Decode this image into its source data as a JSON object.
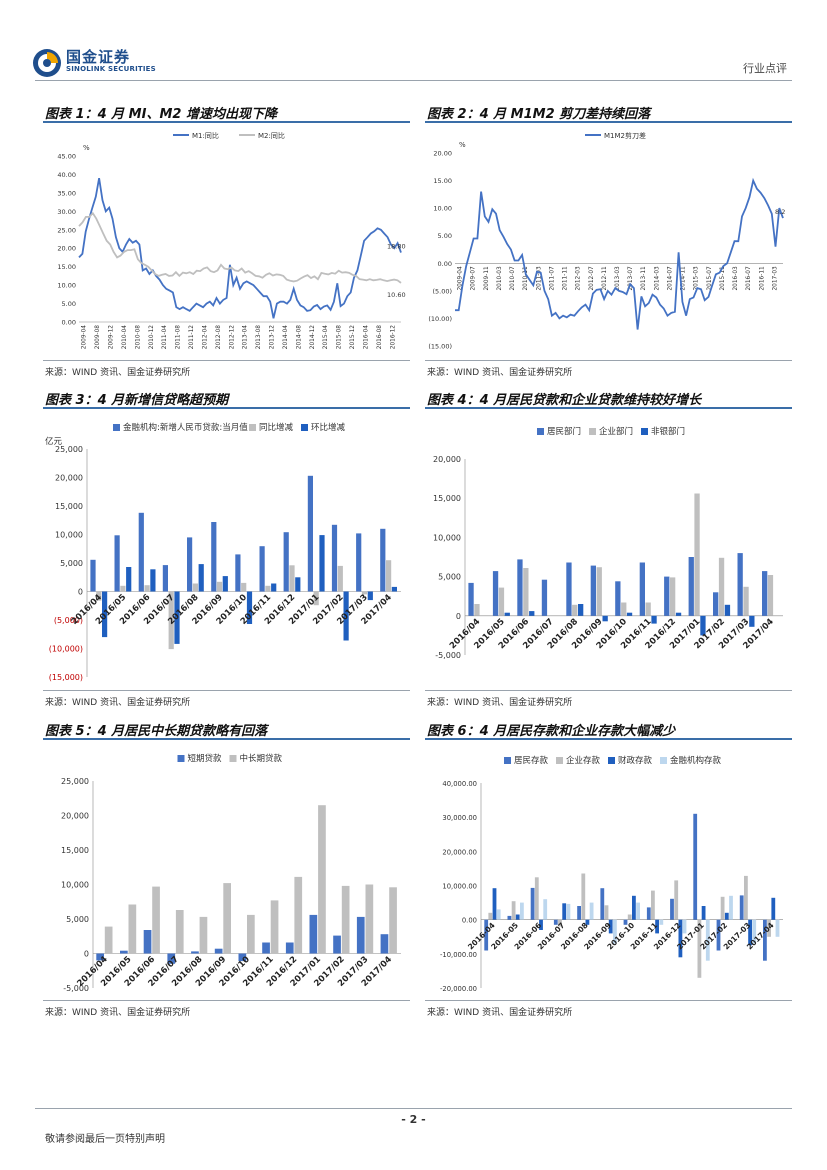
{
  "header": {
    "company_cn": "国金证券",
    "company_en": "SINOLINK SECURITIES",
    "doc_type": "行业点评"
  },
  "panels": [
    {
      "title": "图表 1：4 月 MI、M2 增速均出现下降",
      "source": "来源：WIND 资讯、国金证券研究所"
    },
    {
      "title": "图表 2：4 月 M1M2 剪刀差持续回落",
      "source": "来源：WIND 资讯、国金证券研究所"
    },
    {
      "title": "图表 3：4 月新增信贷略超预期",
      "source": "来源：WIND 资讯、国金证券研究所"
    },
    {
      "title": "图表 4：4 月居民贷款和企业贷款维持较好增长",
      "source": "来源：WIND 资讯、国金证券研究所"
    },
    {
      "title": "图表 5：4 月居民中长期贷款略有回落",
      "source": "来源：WIND 资讯、国金证券研究所"
    },
    {
      "title": "图表 6：4 月居民存款和企业存款大幅减少",
      "source": "来源：WIND 资讯、国金证券研究所"
    }
  ],
  "footer": {
    "page": "- 2 -",
    "note": "敬请参阅最后一页特别声明"
  },
  "colors": {
    "blue": "#4472c4",
    "gray": "#bfbfbf",
    "dark": "#1f5fbf",
    "light": "#bdd7ee",
    "accent": "#3a6ea8"
  },
  "chart_data": [
    {
      "type": "line",
      "unit": "%",
      "legend": [
        "M1:同比",
        "M2:同比"
      ],
      "ylim": [
        0,
        45
      ],
      "yticks": [
        "0.00",
        "5.00",
        "10.00",
        "15.00",
        "20.00",
        "25.00",
        "30.00",
        "35.00",
        "40.00",
        "45.00"
      ],
      "xticks": [
        "2009-04",
        "2009-08",
        "2009-12",
        "2010-04",
        "2010-08",
        "2010-12",
        "2011-04",
        "2011-08",
        "2011-12",
        "2012-04",
        "2012-08",
        "2012-12",
        "2013-04",
        "2013-08",
        "2013-12",
        "2014-04",
        "2014-08",
        "2014-12",
        "2015-04",
        "2015-08",
        "2015-12",
        "2016-04",
        "2016-08",
        "2016-12"
      ],
      "annotations": [
        "18.80",
        "10.60"
      ],
      "series": [
        {
          "name": "M1:同比",
          "values": [
            17.5,
            18.5,
            24.5,
            28,
            31,
            34,
            39,
            33,
            30,
            31,
            28,
            23,
            20,
            19,
            21,
            22.5,
            21.5,
            22,
            21,
            14,
            14.5,
            13,
            14,
            12.5,
            11.5,
            10,
            9,
            8.5,
            8,
            4,
            3.5,
            4,
            3.5,
            3,
            4,
            5,
            4.5,
            4,
            5,
            5.5,
            4.5,
            6.5,
            5,
            6,
            6.5,
            15.5,
            10,
            12,
            9,
            10.5,
            11,
            10.5,
            10,
            9,
            8,
            7,
            7,
            5.5,
            1,
            5,
            5.5,
            5.5,
            5,
            6,
            9,
            6,
            4.5,
            4,
            3,
            3.2,
            4.2,
            4.6,
            3.5,
            4.2,
            4.5,
            3.3,
            5.5,
            10.5,
            4.3,
            5,
            7,
            8,
            12,
            14,
            18,
            22,
            23,
            24,
            24.6,
            25.4,
            25,
            24,
            23,
            21,
            20,
            21.4,
            18.8
          ]
        },
        {
          "name": "M2:同比",
          "values": [
            26,
            27,
            28.5,
            28.5,
            29.5,
            28,
            26,
            24,
            22,
            21,
            19,
            17.5,
            18,
            19,
            19.5,
            19.5,
            19.7,
            17,
            16,
            15.5,
            15,
            14,
            13,
            12.5,
            12.8,
            13,
            12.5,
            12.6,
            13.5,
            12.5,
            13.4,
            13.2,
            13.5,
            13,
            13.9,
            13.8,
            14.5,
            14.8,
            13.8,
            13.5,
            14,
            15.5,
            14.5,
            14.3,
            14.8,
            14,
            13.8,
            14.5,
            13.4,
            13.8,
            13.2,
            12.5,
            12.4,
            12,
            12.8,
            13.2,
            12.6,
            12.9,
            12.8,
            12.5,
            11.5,
            11.2,
            11,
            11.2,
            11.8,
            12.3,
            12.7,
            11.9,
            12.4,
            11.6,
            13.3,
            13.1,
            12.9,
            13.3,
            13.1,
            13.9,
            13.4,
            13.5,
            13.3,
            12.8,
            12.5,
            11.6,
            11.5,
            11.3,
            11.6,
            11.3,
            11.4,
            11.6,
            11.3,
            11.1,
            11.3,
            11.5,
            11.3,
            10.6
          ]
        }
      ]
    },
    {
      "type": "line",
      "unit": "%",
      "legend": [
        "M1M2剪刀差"
      ],
      "ylim": [
        -15,
        20
      ],
      "yticks": [
        "(15.00)",
        "(10.00)",
        "(5.00)",
        "0.00",
        "5.00",
        "10.00",
        "15.00",
        "20.00"
      ],
      "xticks": [
        "2009-04",
        "2009-07",
        "2009-11",
        "2010-03",
        "2010-07",
        "2010-11",
        "2011-03",
        "2011-07",
        "2011-11",
        "2012-03",
        "2012-07",
        "2012-11",
        "2013-03",
        "2013-07",
        "2013-11",
        "2014-03",
        "2014-07",
        "2014-11",
        "2015-03",
        "2015-07",
        "2015-11",
        "2016-03",
        "2016-07",
        "2016-11",
        "2017-03"
      ],
      "annotations": [
        "8.2"
      ],
      "series": [
        {
          "name": "M1M2剪刀差",
          "values": [
            -8.5,
            -8.5,
            -4,
            -0.5,
            2,
            4.5,
            4.5,
            13,
            8.5,
            7.5,
            9.8,
            9,
            6,
            4.8,
            3.5,
            2.5,
            0.5,
            0.5,
            1.5,
            -2,
            -3,
            -4,
            -1.5,
            -1.7,
            -5,
            -6.5,
            -9.5,
            -9,
            -10,
            -9.5,
            -9.8,
            -9.3,
            -9.5,
            -8.7,
            -8,
            -7.5,
            -8.5,
            -5.5,
            -4.8,
            -4.7,
            -6.5,
            -5,
            -5.7,
            -4.5,
            -5,
            -5.2,
            -5.6,
            -3.8,
            -4.5,
            -12,
            -6,
            -7.8,
            -7.2,
            -5.7,
            -6.2,
            -7.5,
            -8.2,
            -9.5,
            -9,
            -8.8,
            2,
            -7,
            -9.5,
            -6.5,
            -6.2,
            -4.5,
            -4.7,
            -6.7,
            -6.1,
            -4,
            -2,
            -1.7,
            -0.5,
            0,
            2,
            4,
            4,
            8.5,
            10,
            12,
            15,
            13.5,
            12.8,
            11.8,
            10.5,
            9,
            3,
            10,
            8.2
          ]
        }
      ]
    },
    {
      "type": "bar",
      "title": "亿元",
      "legend": [
        "金融机构:新增人民币贷款:当月值",
        "同比增减",
        "环比增减"
      ],
      "categories": [
        "2016/04",
        "2016/05",
        "2016/06",
        "2016/07",
        "2016/08",
        "2016/09",
        "2016/10",
        "2016/11",
        "2016/12",
        "2017/01",
        "2017/02",
        "2017/03",
        "2017/04"
      ],
      "ylim": [
        -15000,
        25000
      ],
      "yticks": [
        "(15,000)",
        "(10,000)",
        "(5,000)",
        "0",
        "5,000",
        "10,000",
        "15,000",
        "20,000",
        "25,000"
      ],
      "series": [
        {
          "name": "金融机构:新增人民币贷款:当月值",
          "values": [
            5560,
            9855,
            13800,
            4636,
            9487,
            12200,
            6513,
            7946,
            10400,
            20300,
            11700,
            10200,
            11000
          ]
        },
        {
          "name": "同比增减",
          "values": [
            -1600,
            1000,
            1100,
            -10100,
            1400,
            1700,
            1500,
            1000,
            4600,
            -2400,
            4500,
            -500,
            5500
          ]
        },
        {
          "name": "环比增减",
          "values": [
            -8000,
            4300,
            3900,
            -9200,
            4800,
            2700,
            -5700,
            1400,
            2500,
            9900,
            -8600,
            -1500,
            800
          ]
        }
      ]
    },
    {
      "type": "bar",
      "legend": [
        "居民部门",
        "企业部门",
        "非银部门"
      ],
      "categories": [
        "2016/04",
        "2016/05",
        "2016/06",
        "2016/07",
        "2016/08",
        "2016/09",
        "2016/10",
        "2016/11",
        "2016/12",
        "2017/01",
        "2017/02",
        "2017/03",
        "2017/04"
      ],
      "ylim": [
        -5000,
        20000
      ],
      "yticks": [
        "-5,000",
        "0",
        "5,000",
        "10,000",
        "15,000",
        "20,000"
      ],
      "series": [
        {
          "name": "居民部门",
          "values": [
            4200,
            5700,
            7200,
            4600,
            6800,
            6400,
            4400,
            6800,
            5000,
            7500,
            3000,
            8000,
            5700
          ]
        },
        {
          "name": "企业部门",
          "values": [
            1500,
            3600,
            6100,
            0,
            1400,
            6200,
            1700,
            1700,
            4900,
            15600,
            7400,
            3700,
            5200
          ]
        },
        {
          "name": "非银部门",
          "values": [
            0,
            400,
            600,
            0,
            1500,
            -700,
            400,
            -1000,
            400,
            -2500,
            1400,
            -1400,
            0
          ]
        }
      ]
    },
    {
      "type": "bar",
      "legend": [
        "短期贷款",
        "中长期贷款"
      ],
      "categories": [
        "2016/04",
        "2016/05",
        "2016/06",
        "2016/07",
        "2016/08",
        "2016/09",
        "2016/10",
        "2016/11",
        "2016/12",
        "2017/01",
        "2017/02",
        "2017/03",
        "2017/04"
      ],
      "ylim": [
        -5000,
        25000
      ],
      "yticks": [
        "-5,000",
        "0",
        "5,000",
        "10,000",
        "15,000",
        "20,000",
        "25,000"
      ],
      "series": [
        {
          "name": "短期贷款",
          "values": [
            -1000,
            400,
            3400,
            -1500,
            300,
            700,
            -1100,
            1600,
            1600,
            5600,
            2600,
            5300,
            2800
          ]
        },
        {
          "name": "中长期贷款",
          "values": [
            3900,
            7100,
            9700,
            6300,
            5300,
            10200,
            5600,
            7700,
            11100,
            21500,
            9800,
            10000,
            9600
          ]
        }
      ]
    },
    {
      "type": "bar",
      "legend": [
        "居民存款",
        "企业存款",
        "财政存款",
        "金融机构存款"
      ],
      "categories": [
        "2016-04",
        "2016-05",
        "2016-06",
        "2016-07",
        "2016-08",
        "2016-09",
        "2016-10",
        "2016-11",
        "2016-12",
        "2017-01",
        "2017-02",
        "2017-03",
        "2017-04"
      ],
      "ylim": [
        -20000,
        40000
      ],
      "yticks": [
        "-20,000.00",
        "-10,000.00",
        "0.00",
        "10,000.00",
        "20,000.00",
        "30,000.00",
        "40,000.00"
      ],
      "series": [
        {
          "name": "居民存款",
          "values": [
            -9000,
            1100,
            9300,
            -1500,
            4000,
            9200,
            -1500,
            3600,
            6100,
            31000,
            -9000,
            7100,
            -12000
          ]
        },
        {
          "name": "企业存款",
          "values": [
            2000,
            5400,
            12400,
            -2000,
            13500,
            4200,
            1500,
            8500,
            11500,
            -17000,
            6700,
            12800,
            -5000
          ]
        },
        {
          "name": "财政存款",
          "values": [
            9200,
            1500,
            -3000,
            4800,
            -1500,
            -4000,
            7000,
            -4000,
            -11000,
            4000,
            2000,
            -7500,
            6400
          ]
        },
        {
          "name": "金融机构存款",
          "values": [
            3000,
            5000,
            6000,
            4600,
            5000,
            -7000,
            5000,
            -1500,
            -4000,
            -12000,
            7000,
            -7000,
            -5000
          ]
        }
      ]
    }
  ]
}
